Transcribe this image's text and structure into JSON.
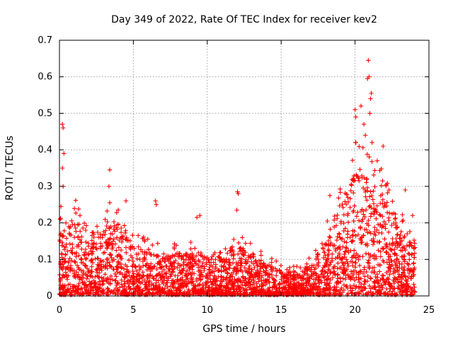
{
  "chart_data": {
    "type": "scatter",
    "title": "Day 349 of 2022, Rate Of TEC Index for receiver kev2",
    "xlabel": "GPS time / hours",
    "ylabel": "ROTI / TECUs",
    "xlim": [
      0,
      25
    ],
    "ylim": [
      0,
      0.7
    ],
    "xticks": [
      0,
      5,
      10,
      15,
      20,
      25
    ],
    "xtick_labels": [
      "0",
      "5",
      "10",
      "15",
      "20",
      "25"
    ],
    "yticks": [
      0,
      0.1,
      0.2,
      0.3,
      0.4,
      0.5,
      0.6,
      0.7
    ],
    "ytick_labels": [
      "0",
      "0.1",
      "0.2",
      "0.3",
      "0.4",
      "0.5",
      "0.6",
      "0.7"
    ],
    "grid": true,
    "marker": "+",
    "marker_color": "#ff0000",
    "series": [
      {
        "name": "ROTI",
        "points_summary": "dense cloud of ROTI values sampled across the whole day (0-24 h)",
        "envelope": {
          "hours": [
            0,
            1,
            2,
            3,
            4,
            5,
            6,
            7,
            8,
            9,
            10,
            11,
            12,
            13,
            14,
            15,
            16,
            17,
            18,
            19,
            20,
            21,
            22,
            23,
            24
          ],
          "typical_max": [
            0.16,
            0.2,
            0.17,
            0.17,
            0.19,
            0.13,
            0.12,
            0.1,
            0.11,
            0.11,
            0.1,
            0.1,
            0.13,
            0.11,
            0.08,
            0.07,
            0.06,
            0.08,
            0.14,
            0.24,
            0.32,
            0.3,
            0.25,
            0.17,
            0.15
          ]
        },
        "outliers": [
          {
            "x": 0.2,
            "y": 0.47
          },
          {
            "x": 0.25,
            "y": 0.46
          },
          {
            "x": 0.3,
            "y": 0.39
          },
          {
            "x": 0.2,
            "y": 0.35
          },
          {
            "x": 0.25,
            "y": 0.3
          },
          {
            "x": 0.1,
            "y": 0.245
          },
          {
            "x": 3.4,
            "y": 0.345
          },
          {
            "x": 3.35,
            "y": 0.3
          },
          {
            "x": 3.4,
            "y": 0.255
          },
          {
            "x": 4.5,
            "y": 0.26
          },
          {
            "x": 6.5,
            "y": 0.26
          },
          {
            "x": 6.55,
            "y": 0.25
          },
          {
            "x": 9.5,
            "y": 0.22
          },
          {
            "x": 9.3,
            "y": 0.215
          },
          {
            "x": 12.05,
            "y": 0.285
          },
          {
            "x": 12.1,
            "y": 0.28
          },
          {
            "x": 12.0,
            "y": 0.235
          },
          {
            "x": 18.3,
            "y": 0.275
          },
          {
            "x": 20.0,
            "y": 0.51
          },
          {
            "x": 20.05,
            "y": 0.49
          },
          {
            "x": 20.4,
            "y": 0.52
          },
          {
            "x": 20.6,
            "y": 0.47
          },
          {
            "x": 20.9,
            "y": 0.645
          },
          {
            "x": 20.95,
            "y": 0.6
          },
          {
            "x": 20.85,
            "y": 0.595
          },
          {
            "x": 21.1,
            "y": 0.555
          },
          {
            "x": 21.05,
            "y": 0.54
          },
          {
            "x": 21.0,
            "y": 0.5
          },
          {
            "x": 20.7,
            "y": 0.44
          },
          {
            "x": 21.15,
            "y": 0.42
          },
          {
            "x": 21.9,
            "y": 0.41
          },
          {
            "x": 21.5,
            "y": 0.37
          },
          {
            "x": 22.3,
            "y": 0.29
          },
          {
            "x": 23.4,
            "y": 0.29
          },
          {
            "x": 23.9,
            "y": 0.22
          }
        ]
      }
    ]
  }
}
